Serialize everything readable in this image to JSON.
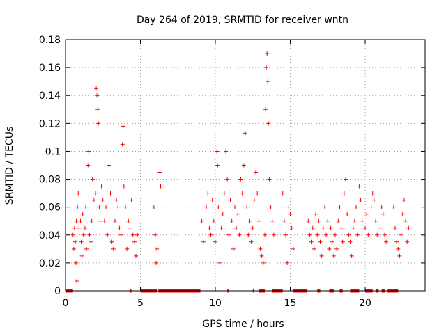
{
  "chart_data": {
    "type": "scatter",
    "title": "Day 264 of 2019, SRMTID for receiver wntn",
    "xlabel": "GPS time / hours",
    "ylabel": "SRMTID / TECUs",
    "xlim": [
      0,
      24
    ],
    "ylim": [
      0,
      0.18
    ],
    "x_ticks": [
      0,
      5,
      10,
      15,
      20
    ],
    "x_tick_labels": [
      "0",
      "5",
      "10",
      "15",
      "20"
    ],
    "y_ticks": [
      0,
      0.02,
      0.04,
      0.06,
      0.08,
      0.1,
      0.12,
      0.14,
      0.16,
      0.18
    ],
    "y_tick_labels": [
      "0",
      "0.02",
      "0.04",
      "0.06",
      "0.08",
      "0.1",
      "0.12",
      "0.14",
      "0.16",
      "0.18"
    ],
    "grid": true,
    "marker": "+",
    "color": "#ff0000",
    "series": [
      {
        "name": "SRMTID",
        "points": [
          [
            0.5,
            0.04
          ],
          [
            0.55,
            0.03
          ],
          [
            0.6,
            0.045
          ],
          [
            0.65,
            0.035
          ],
          [
            0.7,
            0.02
          ],
          [
            0.72,
            0.05
          ],
          [
            0.75,
            0.007
          ],
          [
            0.8,
            0.06
          ],
          [
            0.85,
            0.07
          ],
          [
            0.9,
            0.045
          ],
          [
            1.0,
            0.05
          ],
          [
            1.05,
            0.035
          ],
          [
            1.1,
            0.025
          ],
          [
            1.15,
            0.055
          ],
          [
            1.2,
            0.04
          ],
          [
            1.3,
            0.045
          ],
          [
            1.35,
            0.06
          ],
          [
            1.4,
            0.03
          ],
          [
            1.5,
            0.09
          ],
          [
            1.55,
            0.1
          ],
          [
            1.6,
            0.04
          ],
          [
            1.7,
            0.035
          ],
          [
            1.75,
            0.05
          ],
          [
            1.8,
            0.08
          ],
          [
            1.9,
            0.065
          ],
          [
            2.0,
            0.07
          ],
          [
            2.05,
            0.145
          ],
          [
            2.1,
            0.14
          ],
          [
            2.15,
            0.13
          ],
          [
            2.2,
            0.12
          ],
          [
            2.25,
            0.06
          ],
          [
            2.3,
            0.05
          ],
          [
            2.4,
            0.075
          ],
          [
            2.5,
            0.065
          ],
          [
            2.6,
            0.05
          ],
          [
            2.7,
            0.06
          ],
          [
            2.8,
            0.04
          ],
          [
            2.9,
            0.09
          ],
          [
            3.0,
            0.07
          ],
          [
            3.1,
            0.035
          ],
          [
            3.2,
            0.03
          ],
          [
            3.3,
            0.05
          ],
          [
            3.4,
            0.065
          ],
          [
            3.5,
            0.06
          ],
          [
            3.6,
            0.045
          ],
          [
            3.7,
            0.04
          ],
          [
            3.8,
            0.105
          ],
          [
            3.85,
            0.118
          ],
          [
            3.9,
            0.075
          ],
          [
            4.0,
            0.06
          ],
          [
            4.1,
            0.03
          ],
          [
            4.2,
            0.05
          ],
          [
            4.3,
            0.045
          ],
          [
            4.4,
            0.065
          ],
          [
            4.5,
            0.04
          ],
          [
            4.6,
            0.035
          ],
          [
            4.7,
            0.025
          ],
          [
            4.8,
            0.04
          ],
          [
            5.9,
            0.06
          ],
          [
            6.0,
            0.04
          ],
          [
            6.05,
            0.02
          ],
          [
            6.1,
            0.03
          ],
          [
            6.3,
            0.085
          ],
          [
            6.35,
            0.075
          ],
          [
            9.1,
            0.05
          ],
          [
            9.2,
            0.035
          ],
          [
            9.4,
            0.06
          ],
          [
            9.5,
            0.07
          ],
          [
            9.6,
            0.045
          ],
          [
            9.7,
            0.04
          ],
          [
            9.8,
            0.065
          ],
          [
            9.9,
            0.05
          ],
          [
            10.0,
            0.035
          ],
          [
            10.1,
            0.1
          ],
          [
            10.15,
            0.09
          ],
          [
            10.2,
            0.06
          ],
          [
            10.3,
            0.02
          ],
          [
            10.4,
            0.045
          ],
          [
            10.5,
            0.055
          ],
          [
            10.6,
            0.07
          ],
          [
            10.7,
            0.1
          ],
          [
            10.8,
            0.08
          ],
          [
            10.9,
            0.04
          ],
          [
            11.0,
            0.065
          ],
          [
            11.1,
            0.05
          ],
          [
            11.2,
            0.03
          ],
          [
            11.3,
            0.06
          ],
          [
            11.4,
            0.045
          ],
          [
            11.5,
            0.055
          ],
          [
            11.6,
            0.04
          ],
          [
            11.7,
            0.08
          ],
          [
            11.8,
            0.07
          ],
          [
            11.9,
            0.09
          ],
          [
            12.0,
            0.113
          ],
          [
            12.1,
            0.06
          ],
          [
            12.2,
            0.04
          ],
          [
            12.3,
            0.05
          ],
          [
            12.4,
            0.035
          ],
          [
            12.5,
            0.045
          ],
          [
            12.6,
            0.065
          ],
          [
            12.7,
            0.085
          ],
          [
            12.8,
            0.07
          ],
          [
            12.9,
            0.05
          ],
          [
            13.0,
            0.03
          ],
          [
            13.1,
            0.025
          ],
          [
            13.2,
            0.02
          ],
          [
            13.3,
            0.04
          ],
          [
            13.35,
            0.13
          ],
          [
            13.4,
            0.16
          ],
          [
            13.45,
            0.17
          ],
          [
            13.5,
            0.15
          ],
          [
            13.55,
            0.12
          ],
          [
            13.6,
            0.08
          ],
          [
            13.7,
            0.06
          ],
          [
            13.8,
            0.05
          ],
          [
            13.9,
            0.04
          ],
          [
            14.5,
            0.07
          ],
          [
            14.6,
            0.05
          ],
          [
            14.7,
            0.04
          ],
          [
            14.8,
            0.02
          ],
          [
            14.9,
            0.06
          ],
          [
            15.0,
            0.055
          ],
          [
            15.1,
            0.045
          ],
          [
            15.2,
            0.03
          ],
          [
            16.2,
            0.05
          ],
          [
            16.3,
            0.04
          ],
          [
            16.4,
            0.035
          ],
          [
            16.5,
            0.045
          ],
          [
            16.6,
            0.03
          ],
          [
            16.7,
            0.055
          ],
          [
            16.8,
            0.04
          ],
          [
            16.9,
            0.05
          ],
          [
            17.0,
            0.035
          ],
          [
            17.1,
            0.025
          ],
          [
            17.2,
            0.045
          ],
          [
            17.3,
            0.06
          ],
          [
            17.4,
            0.04
          ],
          [
            17.5,
            0.05
          ],
          [
            17.6,
            0.03
          ],
          [
            17.7,
            0.045
          ],
          [
            17.8,
            0.035
          ],
          [
            17.9,
            0.025
          ],
          [
            18.0,
            0.04
          ],
          [
            18.1,
            0.03
          ],
          [
            18.2,
            0.05
          ],
          [
            18.3,
            0.06
          ],
          [
            18.4,
            0.045
          ],
          [
            18.5,
            0.035
          ],
          [
            18.6,
            0.07
          ],
          [
            18.7,
            0.08
          ],
          [
            18.8,
            0.055
          ],
          [
            18.9,
            0.04
          ],
          [
            19.0,
            0.035
          ],
          [
            19.1,
            0.025
          ],
          [
            19.2,
            0.045
          ],
          [
            19.3,
            0.05
          ],
          [
            19.4,
            0.06
          ],
          [
            19.5,
            0.04
          ],
          [
            19.6,
            0.075
          ],
          [
            19.7,
            0.065
          ],
          [
            19.8,
            0.05
          ],
          [
            20.0,
            0.045
          ],
          [
            20.1,
            0.055
          ],
          [
            20.2,
            0.04
          ],
          [
            20.4,
            0.06
          ],
          [
            20.5,
            0.07
          ],
          [
            20.6,
            0.065
          ],
          [
            20.7,
            0.05
          ],
          [
            20.8,
            0.04
          ],
          [
            21.0,
            0.045
          ],
          [
            21.1,
            0.06
          ],
          [
            21.2,
            0.055
          ],
          [
            21.3,
            0.04
          ],
          [
            21.4,
            0.035
          ],
          [
            21.9,
            0.06
          ],
          [
            22.0,
            0.045
          ],
          [
            22.1,
            0.035
          ],
          [
            22.2,
            0.03
          ],
          [
            22.3,
            0.025
          ],
          [
            22.4,
            0.04
          ],
          [
            22.5,
            0.055
          ],
          [
            22.6,
            0.065
          ],
          [
            22.7,
            0.05
          ],
          [
            22.8,
            0.035
          ],
          [
            22.9,
            0.045
          ]
        ]
      }
    ],
    "zero_segments": [
      [
        0.0,
        0.5
      ],
      [
        4.3,
        4.4
      ],
      [
        5.0,
        6.1
      ],
      [
        6.2,
        9.0
      ],
      [
        10.8,
        10.9
      ],
      [
        12.5,
        12.6
      ],
      [
        12.9,
        13.3
      ],
      [
        13.8,
        14.5
      ],
      [
        15.2,
        16.1
      ],
      [
        16.8,
        17.0
      ],
      [
        17.6,
        17.9
      ],
      [
        18.3,
        18.5
      ],
      [
        19.0,
        19.6
      ],
      [
        20.0,
        20.5
      ],
      [
        20.7,
        20.9
      ],
      [
        21.1,
        21.3
      ],
      [
        21.5,
        22.2
      ]
    ]
  }
}
